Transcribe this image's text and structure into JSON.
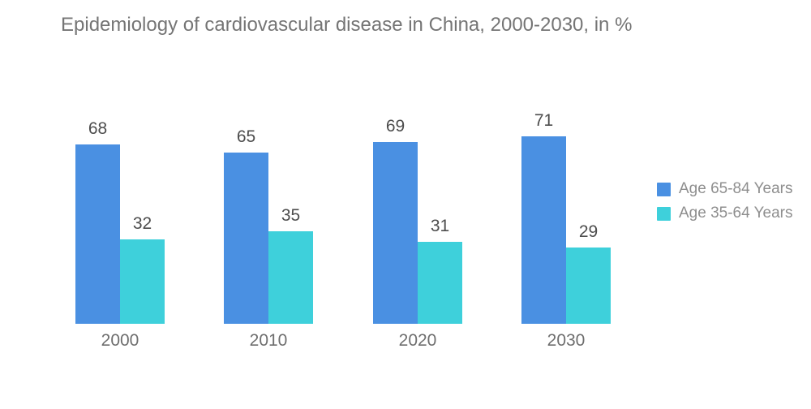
{
  "chart_data": {
    "type": "bar",
    "title": "Epidemiology of cardiovascular disease in China, 2000-2030, in %",
    "categories": [
      "2000",
      "2010",
      "2020",
      "2030"
    ],
    "series": [
      {
        "name": "Age 65-84 Years",
        "color": "#4A90E2",
        "values": [
          68,
          65,
          69,
          71
        ]
      },
      {
        "name": "Age 35-64 Years",
        "color": "#3ED0DB",
        "values": [
          32,
          35,
          31,
          29
        ]
      }
    ],
    "value_labels_shown": true,
    "xlabel": "",
    "ylabel": "",
    "ylim": [
      0,
      75
    ],
    "grid": false,
    "legend_position": "right"
  },
  "legend": {
    "items": [
      {
        "label": "Age 65-84 Years",
        "color": "#4A90E2"
      },
      {
        "label": "Age 35-64 Years",
        "color": "#3ED0DB"
      }
    ]
  }
}
